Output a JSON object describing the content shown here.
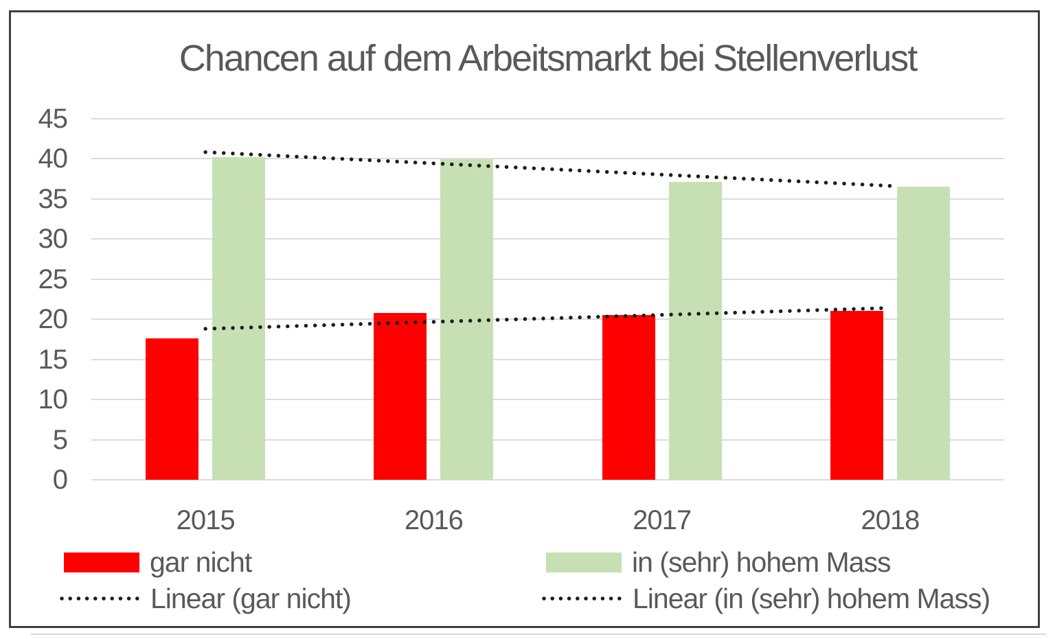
{
  "page": {
    "background": "#ffffff",
    "frame_border_color": "#3f3f3f"
  },
  "chart_data": {
    "type": "bar",
    "title": "Chancen auf dem Arbeitsmarkt bei Stellenverlust",
    "title_color": "#595959",
    "categories": [
      "2015",
      "2016",
      "2017",
      "2018"
    ],
    "series": [
      {
        "name": "gar nicht",
        "color": "#fe0000",
        "values": [
          17.6,
          20.8,
          20.5,
          21.0
        ]
      },
      {
        "name": "in (sehr) hohem Mass",
        "color": "#c6e0b4",
        "values": [
          40.2,
          39.9,
          37.1,
          36.5
        ]
      }
    ],
    "trendlines": [
      {
        "name": "Linear (gar nicht)",
        "for_series": "gar nicht",
        "style": "dotted",
        "color": "#1c1c1c",
        "start_value": 18.8,
        "end_value": 21.4
      },
      {
        "name": "Linear (in (sehr) hohem Mass)",
        "for_series": "in (sehr) hohem Mass",
        "style": "dotted",
        "color": "#1c1c1c",
        "start_value": 40.8,
        "end_value": 36.6
      }
    ],
    "ylim": [
      0,
      45
    ],
    "ytick_step": 5,
    "yticks": [
      0,
      5,
      10,
      15,
      20,
      25,
      30,
      35,
      40,
      45
    ],
    "grid": true,
    "gridline_color": "#dcdcdc",
    "axis_text_color": "#595959",
    "legend_position": "bottom"
  }
}
